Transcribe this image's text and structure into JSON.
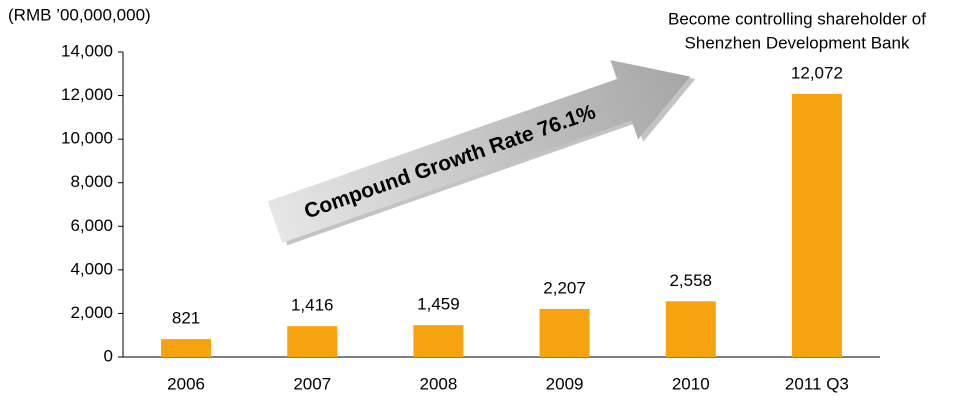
{
  "chart_data": {
    "type": "bar",
    "y_label": "(RMB ’00,000,000)",
    "annotation": [
      "Become controlling shareholder of",
      "Shenzhen Development Bank"
    ],
    "arrow_label": "Compound Growth Rate 76.1%",
    "categories": [
      "2006",
      "2007",
      "2008",
      "2009",
      "2010",
      "2011 Q3"
    ],
    "values": [
      821,
      1416,
      1459,
      2207,
      2558,
      12072
    ],
    "value_labels": [
      "821",
      "1,416",
      "1,459",
      "2,207",
      "2,558",
      "12,072"
    ],
    "color": "#f7a30f",
    "ylim": [
      0,
      14000
    ],
    "yticks": [
      0,
      {
        "value": 2000,
        "label": "2,000"
      },
      {
        "value": 4000,
        "label": "4,000"
      },
      {
        "value": 6000,
        "label": "6,000"
      },
      {
        "value": 8000,
        "label": "8,000"
      },
      {
        "value": 10000,
        "label": "10,000"
      },
      {
        "value": 12000,
        "label": "12,000"
      },
      {
        "value": 14000,
        "label": "14,000"
      }
    ]
  }
}
